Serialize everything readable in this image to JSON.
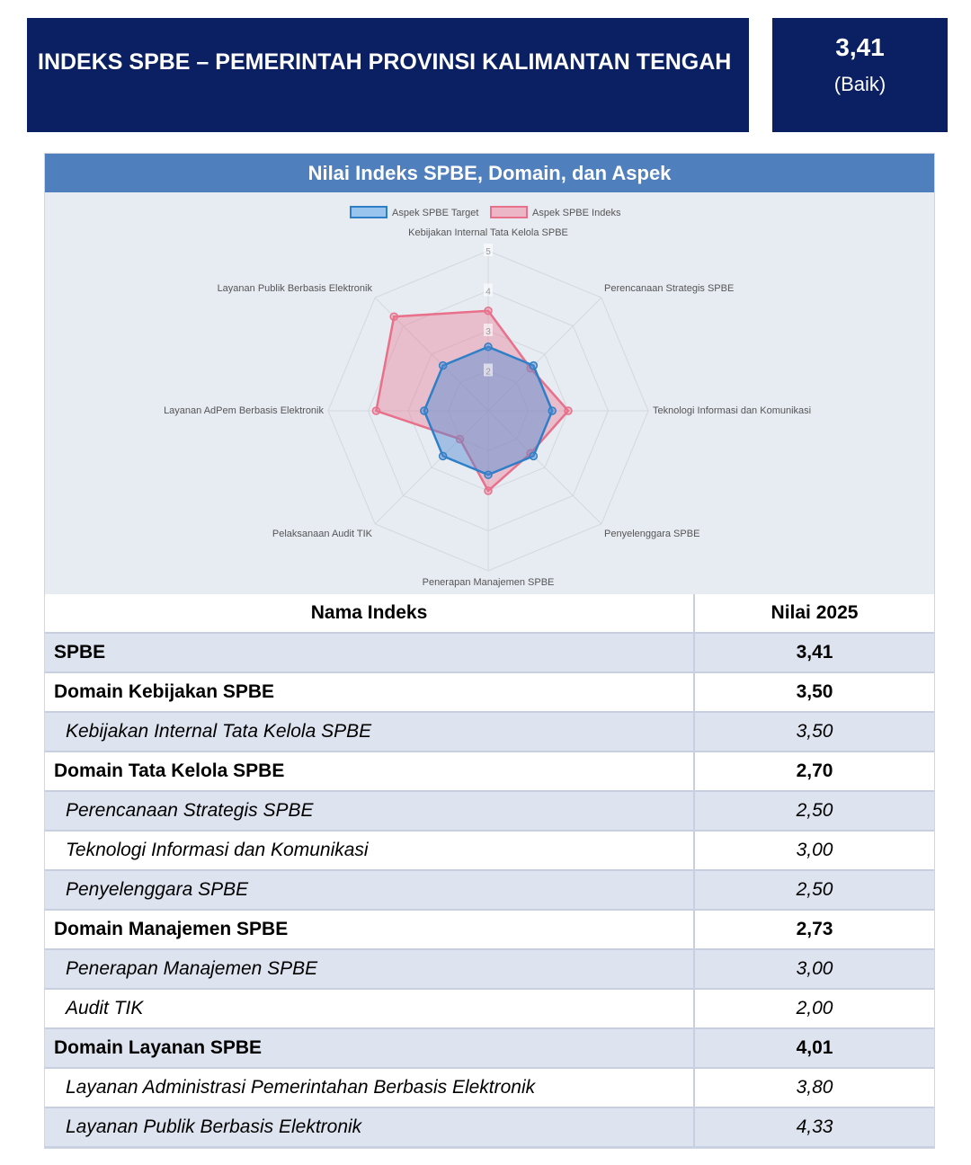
{
  "header": {
    "title": "INDEKS SPBE – PEMERINTAH PROVINSI KALIMANTAN TENGAH",
    "score": "3,41",
    "status": "(Baik)"
  },
  "panel_title": "Nilai Indeks SPBE, Domain, dan Aspek",
  "chart_data": {
    "type": "radar",
    "axis_min": 1,
    "axis_max": 5,
    "ticks": [
      "1",
      "2",
      "3",
      "4",
      "5"
    ],
    "categories": [
      "Kebijakan Internal Tata Kelola SPBE",
      "Perencanaan Strategis SPBE",
      "Teknologi Informasi dan Komunikasi",
      "Penyelenggara SPBE",
      "Penerapan Manajemen SPBE",
      "Pelaksanaan Audit TIK",
      "Layanan AdPem Berbasis Elektronik",
      "Layanan Publik Berbasis Elektronik"
    ],
    "series": [
      {
        "name": "Aspek SPBE Target",
        "color": "#2f7fc8",
        "values": [
          2.6,
          2.6,
          2.6,
          2.6,
          2.6,
          2.6,
          2.6,
          2.6
        ]
      },
      {
        "name": "Aspek SPBE Indeks",
        "color": "#e8708a",
        "values": [
          3.5,
          2.5,
          3.0,
          2.5,
          3.0,
          2.0,
          3.8,
          4.33
        ]
      }
    ],
    "legend": "top"
  },
  "table": {
    "headers": [
      "Nama Indeks",
      "Nilai 2025"
    ],
    "rows": [
      {
        "name": "SPBE",
        "value": "3,41",
        "type": "top"
      },
      {
        "name": "Domain Kebijakan SPBE",
        "value": "3,50",
        "type": "b"
      },
      {
        "name": "Kebijakan Internal Tata Kelola SPBE",
        "value": "3,50",
        "type": "i"
      },
      {
        "name": "Domain Tata Kelola SPBE",
        "value": "2,70",
        "type": "b"
      },
      {
        "name": "Perencanaan Strategis SPBE",
        "value": "2,50",
        "type": "i"
      },
      {
        "name": "Teknologi Informasi dan Komunikasi",
        "value": "3,00",
        "type": "i"
      },
      {
        "name": "Penyelenggara SPBE",
        "value": "2,50",
        "type": "i"
      },
      {
        "name": "Domain Manajemen SPBE",
        "value": "2,73",
        "type": "b"
      },
      {
        "name": "Penerapan Manajemen SPBE",
        "value": "3,00",
        "type": "i"
      },
      {
        "name": "Audit TIK",
        "value": "2,00",
        "type": "i"
      },
      {
        "name": "Domain Layanan SPBE",
        "value": "4,01",
        "type": "b"
      },
      {
        "name": "Layanan Administrasi Pemerintahan Berbasis Elektronik",
        "value": "3,80",
        "type": "i"
      },
      {
        "name": "Layanan Publik Berbasis Elektronik",
        "value": "4,33",
        "type": "i"
      }
    ]
  }
}
